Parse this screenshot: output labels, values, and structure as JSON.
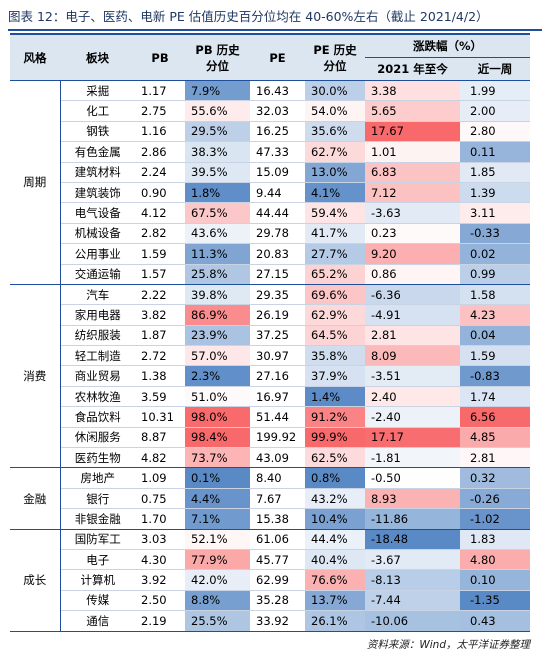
{
  "title": "图表 12：电子、医药、电新 PE 估值历史百分位均在 40-60%左右（截止 2021/4/2）",
  "header": {
    "style": "风格",
    "sector": "板块",
    "pb": "PB",
    "pb_pct": [
      "PB 历史",
      "分位"
    ],
    "pe": "PE",
    "pe_pct": [
      "PE 历史",
      "分位"
    ],
    "change": "涨跌幅（%）",
    "ytd": "2021 年至今",
    "week": "近一周"
  },
  "table": {
    "groups": [
      {
        "name": "周期",
        "rows": [
          [
            "采掘",
            "1.17",
            "7.9%",
            "16.43",
            "30.0%",
            "3.38",
            "1.99"
          ],
          [
            "化工",
            "2.75",
            "55.6%",
            "32.03",
            "54.0%",
            "5.65",
            "2.00"
          ],
          [
            "钢铁",
            "1.16",
            "29.5%",
            "16.25",
            "35.6%",
            "17.67",
            "2.80"
          ],
          [
            "有色金属",
            "2.86",
            "38.3%",
            "47.33",
            "62.7%",
            "1.01",
            "0.11"
          ],
          [
            "建筑材料",
            "2.24",
            "39.5%",
            "15.09",
            "13.0%",
            "6.83",
            "1.85"
          ],
          [
            "建筑装饰",
            "0.90",
            "1.8%",
            "9.44",
            "4.1%",
            "7.12",
            "1.39"
          ],
          [
            "电气设备",
            "4.12",
            "67.5%",
            "44.44",
            "59.4%",
            "-3.63",
            "3.11"
          ],
          [
            "机械设备",
            "2.82",
            "43.6%",
            "29.78",
            "41.7%",
            "0.23",
            "-0.33"
          ],
          [
            "公用事业",
            "1.59",
            "11.3%",
            "20.83",
            "27.7%",
            "9.20",
            "0.02"
          ],
          [
            "交通运输",
            "1.57",
            "25.8%",
            "27.15",
            "65.2%",
            "0.86",
            "0.99"
          ]
        ]
      },
      {
        "name": "消费",
        "rows": [
          [
            "汽车",
            "2.22",
            "39.8%",
            "29.35",
            "69.6%",
            "-6.36",
            "1.58"
          ],
          [
            "家用电器",
            "3.82",
            "86.9%",
            "26.19",
            "62.9%",
            "-4.91",
            "4.23"
          ],
          [
            "纺织服装",
            "1.87",
            "23.9%",
            "37.25",
            "64.5%",
            "2.81",
            "0.04"
          ],
          [
            "轻工制造",
            "2.72",
            "57.0%",
            "30.97",
            "35.8%",
            "8.09",
            "1.59"
          ],
          [
            "商业贸易",
            "1.38",
            "2.3%",
            "27.16",
            "37.9%",
            "-3.51",
            "-0.83"
          ],
          [
            "农林牧渔",
            "3.59",
            "51.0%",
            "16.97",
            "1.4%",
            "2.40",
            "1.74"
          ],
          [
            "食品饮料",
            "10.31",
            "98.0%",
            "51.44",
            "91.2%",
            "-2.40",
            "6.56"
          ],
          [
            "休闲服务",
            "8.87",
            "98.4%",
            "199.92",
            "99.9%",
            "17.17",
            "4.85"
          ],
          [
            "医药生物",
            "4.82",
            "73.7%",
            "43.09",
            "62.5%",
            "-1.81",
            "2.81"
          ]
        ]
      },
      {
        "name": "金融",
        "rows": [
          [
            "房地产",
            "1.09",
            "0.1%",
            "8.40",
            "0.8%",
            "-0.50",
            "0.32"
          ],
          [
            "银行",
            "0.75",
            "4.4%",
            "7.67",
            "43.2%",
            "8.93",
            "-0.26"
          ],
          [
            "非银金融",
            "1.70",
            "7.1%",
            "15.38",
            "10.4%",
            "-11.86",
            "-1.02"
          ]
        ]
      },
      {
        "name": "成长",
        "rows": [
          [
            "国防军工",
            "3.03",
            "52.1%",
            "61.06",
            "44.4%",
            "-18.48",
            "1.83"
          ],
          [
            "电子",
            "4.30",
            "77.9%",
            "45.77",
            "40.4%",
            "-3.67",
            "4.80"
          ],
          [
            "计算机",
            "3.92",
            "42.0%",
            "62.99",
            "76.6%",
            "-8.13",
            "0.10"
          ],
          [
            "传媒",
            "2.50",
            "8.8%",
            "35.28",
            "13.7%",
            "-7.44",
            "-1.35"
          ],
          [
            "通信",
            "2.19",
            "25.5%",
            "33.92",
            "26.1%",
            "-10.06",
            "0.43"
          ]
        ]
      }
    ]
  },
  "source": "资料来源：Wind，太平洋证券整理"
}
